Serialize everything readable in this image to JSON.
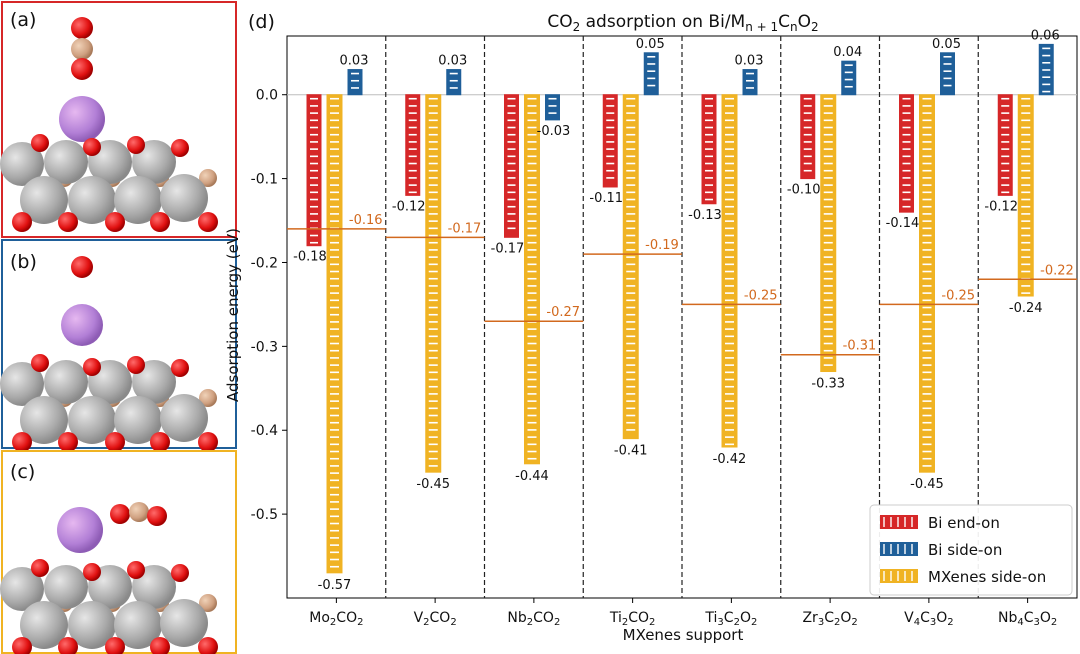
{
  "panels": [
    {
      "label": "(a)",
      "border": "#d62728"
    },
    {
      "label": "(b)",
      "border": "#1f5f99"
    },
    {
      "label": "(c)",
      "border": "#f0b323"
    }
  ],
  "chart_data": {
    "type": "bar",
    "panel_label": "(d)",
    "title": "CO2 adsorption on Bi/Mn+1CnO2",
    "title_main": "CO",
    "title_sub1": "2",
    "title_mid": " adsorption on Bi/M",
    "title_sub2": "n + 1",
    "title_mid2": "C",
    "title_sub3": "n",
    "title_end": "O",
    "title_sub4": "2",
    "xlabel": "MXenes support",
    "ylabel": "Adsorption energy (eV)",
    "ylim": [
      -0.6,
      0.07
    ],
    "yticks": [
      -0.5,
      -0.4,
      -0.3,
      -0.2,
      -0.1,
      0.0
    ],
    "ytick_labels": [
      "-0.5",
      "-0.4",
      "-0.3",
      "-0.2",
      "-0.1",
      "0.0"
    ],
    "categories": [
      {
        "name": "Mo2CO2",
        "parts": [
          [
            "Mo",
            ""
          ],
          [
            "2",
            "sub"
          ],
          [
            "CO",
            ""
          ],
          [
            "2",
            "sub"
          ]
        ]
      },
      {
        "name": "V2CO2",
        "parts": [
          [
            "V",
            ""
          ],
          [
            "2",
            "sub"
          ],
          [
            "CO",
            ""
          ],
          [
            "2",
            "sub"
          ]
        ]
      },
      {
        "name": "Nb2CO2",
        "parts": [
          [
            "Nb",
            ""
          ],
          [
            "2",
            "sub"
          ],
          [
            "CO",
            ""
          ],
          [
            "2",
            "sub"
          ]
        ]
      },
      {
        "name": "Ti2CO2",
        "parts": [
          [
            "Ti",
            ""
          ],
          [
            "2",
            "sub"
          ],
          [
            "CO",
            ""
          ],
          [
            "2",
            "sub"
          ]
        ]
      },
      {
        "name": "Ti3C2O2",
        "parts": [
          [
            "Ti",
            ""
          ],
          [
            "3",
            "sub"
          ],
          [
            "C",
            ""
          ],
          [
            "2",
            "sub"
          ],
          [
            "O",
            ""
          ],
          [
            "2",
            "sub"
          ]
        ]
      },
      {
        "name": "Zr3C2O2",
        "parts": [
          [
            "Zr",
            ""
          ],
          [
            "3",
            "sub"
          ],
          [
            "C",
            ""
          ],
          [
            "2",
            "sub"
          ],
          [
            "O",
            ""
          ],
          [
            "2",
            "sub"
          ]
        ]
      },
      {
        "name": "V4C3O2",
        "parts": [
          [
            "V",
            ""
          ],
          [
            "4",
            "sub"
          ],
          [
            "C",
            ""
          ],
          [
            "3",
            "sub"
          ],
          [
            "O",
            ""
          ],
          [
            "2",
            "sub"
          ]
        ]
      },
      {
        "name": "Nb4C3O2",
        "parts": [
          [
            "Nb",
            ""
          ],
          [
            "4",
            "sub"
          ],
          [
            "C",
            ""
          ],
          [
            "3",
            "sub"
          ],
          [
            "O",
            ""
          ],
          [
            "2",
            "sub"
          ]
        ]
      }
    ],
    "series": [
      {
        "name": "Bi end-on",
        "color": "#d62728",
        "values": [
          -0.18,
          -0.12,
          -0.17,
          -0.11,
          -0.13,
          -0.1,
          -0.14,
          -0.12
        ],
        "labels": [
          "-0.18",
          "-0.12",
          "-0.17",
          "-0.11",
          "-0.13",
          "-0.10",
          "-0.14",
          "-0.12"
        ]
      },
      {
        "name": "Bi side-on",
        "color": "#1f5f99",
        "values": [
          0.03,
          0.03,
          -0.03,
          0.05,
          0.03,
          0.04,
          0.05,
          0.06
        ],
        "labels": [
          "0.03",
          "0.03",
          "-0.03",
          "0.05",
          "0.03",
          "0.04",
          "0.05",
          "0.06"
        ]
      },
      {
        "name": "MXenes side-on",
        "color": "#f0b323",
        "values": [
          -0.57,
          -0.45,
          -0.44,
          -0.41,
          -0.42,
          -0.33,
          -0.45,
          -0.24
        ],
        "labels": [
          "-0.57",
          "-0.45",
          "-0.44",
          "-0.41",
          "-0.42",
          "-0.33",
          "-0.45",
          "-0.24"
        ]
      }
    ],
    "reference_lines": {
      "color": "#d2691e",
      "values": [
        -0.16,
        -0.17,
        -0.27,
        -0.19,
        -0.25,
        -0.31,
        -0.25,
        -0.22
      ],
      "labels": [
        "-0.16",
        "-0.17",
        "-0.27",
        "-0.19",
        "-0.25",
        "-0.31",
        "-0.25",
        "-0.22"
      ]
    },
    "legend_position": "bottom-right",
    "grid": false
  }
}
